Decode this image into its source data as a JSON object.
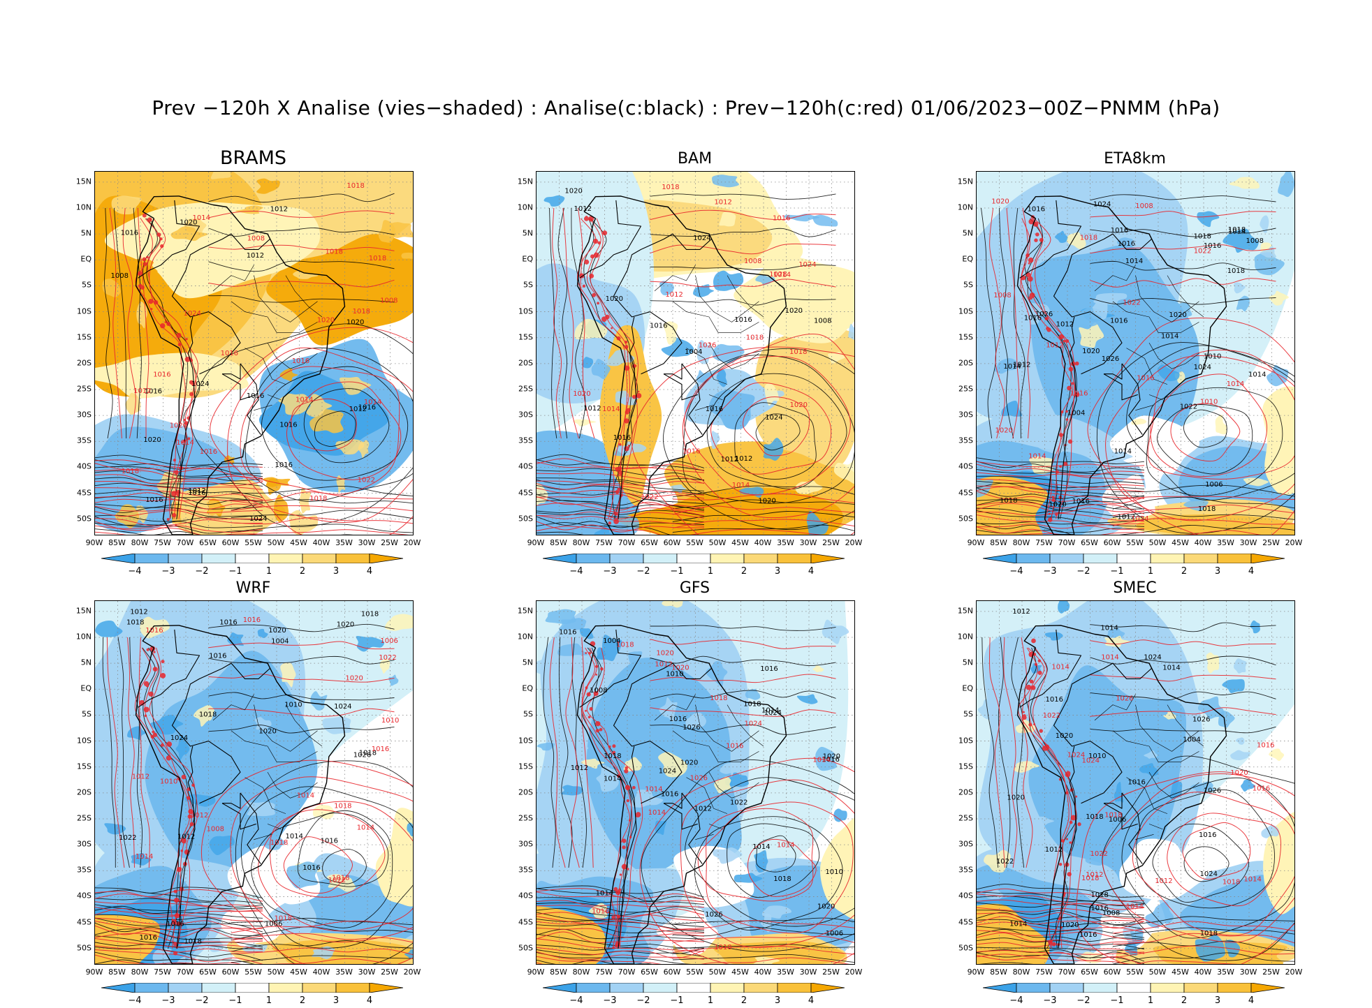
{
  "title": "Prev −120h X Analise (vies−shaded) : Analise(c:black) : Prev−120h(c:red) 01/06/2023−00Z−PNMM (hPa)",
  "lat_labels": [
    "15N",
    "10N",
    "5N",
    "EQ",
    "5S",
    "10S",
    "15S",
    "20S",
    "25S",
    "30S",
    "35S",
    "40S",
    "45S",
    "50S"
  ],
  "lon_labels": [
    "90W",
    "85W",
    "80W",
    "75W",
    "70W",
    "65W",
    "60W",
    "55W",
    "50W",
    "45W",
    "40W",
    "35W",
    "30W",
    "25W",
    "20W"
  ],
  "colorbar": {
    "labels": [
      "−4",
      "−3",
      "−2",
      "−1",
      "1",
      "2",
      "3",
      "4"
    ],
    "colors": [
      "#3ba2e8",
      "#6cb8ee",
      "#a2d2f4",
      "#d2f0f8",
      "#ffffff",
      "#fff4b4",
      "#fbd978",
      "#f9c13a",
      "#f5a700"
    ]
  },
  "colors": {
    "black_contour": "#000000",
    "red_contour": "#e8262c",
    "land_border": "#000000"
  },
  "panels": [
    {
      "name": "BRAMS",
      "bias": "warm",
      "labels_black": [
        "1012",
        "1016",
        "1012",
        "1012",
        "1016",
        "1020",
        "1016",
        "1020",
        "1024",
        "1016",
        "1016",
        "1012",
        "1008",
        "1024",
        "1020",
        "1016",
        "1016",
        "1016"
      ],
      "labels_red": [
        "1018",
        "1016",
        "1016",
        "1012",
        "1014",
        "1014",
        "1014",
        "1016",
        "1018",
        "1018",
        "1020",
        "1020",
        "1018",
        "1018",
        "1022",
        "1018",
        "1016",
        "1008",
        "1008",
        "1024",
        "1014"
      ]
    },
    {
      "name": "BAM",
      "bias": "mixed",
      "labels_black": [
        "1016",
        "1012",
        "1012",
        "1020",
        "1016",
        "1020",
        "1024",
        "1020",
        "1016",
        "1012",
        "1008",
        "1004",
        "1024",
        "1020",
        "1016",
        "1012"
      ],
      "labels_red": [
        "1020",
        "1018",
        "1016",
        "1014",
        "1014",
        "1012",
        "1014",
        "1022",
        "1024",
        "1026",
        "1028",
        "1018",
        "1018",
        "1012",
        "1020",
        "1008",
        "1016"
      ]
    },
    {
      "name": "ETA8km",
      "bias": "cold",
      "labels_black": [
        "1016",
        "1018",
        "1016",
        "1012",
        "1014",
        "1014",
        "1014",
        "1014",
        "1016",
        "1016",
        "1018",
        "1016",
        "1018",
        "1020",
        "1022",
        "1024",
        "1026",
        "1020",
        "1018",
        "1016",
        "1018",
        "1014",
        "1012",
        "1008",
        "1006",
        "1004",
        "1026",
        "1024",
        "1020",
        "1010",
        "1014",
        "1012",
        "1016"
      ],
      "labels_red": [
        "1016",
        "1008",
        "1010",
        "1012",
        "1014",
        "1016",
        "1018",
        "1020",
        "1022",
        "1024",
        "1022",
        "1020",
        "1008",
        "1014"
      ]
    },
    {
      "name": "WRF",
      "bias": "cold",
      "labels_black": [
        "1016",
        "1018",
        "1016",
        "1012",
        "1014",
        "1016",
        "1018",
        "1018",
        "1016",
        "1018",
        "1018",
        "1020",
        "1024",
        "1026",
        "1020",
        "1022",
        "1016",
        "1012",
        "1010",
        "1006",
        "1004",
        "1024",
        "1020",
        "1016"
      ],
      "labels_red": [
        "1018",
        "1016",
        "1014",
        "1010",
        "1014",
        "1012",
        "1016",
        "1018",
        "1020",
        "1018",
        "1022",
        "1018",
        "1016",
        "1014",
        "1012",
        "1008",
        "1006",
        "1010",
        "1022"
      ]
    },
    {
      "name": "GFS",
      "bias": "cold",
      "labels_black": [
        "1016",
        "1018",
        "1016",
        "1012",
        "1010",
        "1014",
        "1014",
        "1014",
        "1016",
        "1018",
        "1020",
        "1022",
        "1024",
        "1026",
        "1020",
        "1018",
        "1016",
        "1014",
        "1012",
        "1010",
        "1008",
        "1006",
        "1004",
        "1026",
        "1024",
        "1020",
        "1016"
      ],
      "labels_red": [
        "1018",
        "1016",
        "1014",
        "1014",
        "1012",
        "1010",
        "1014",
        "1018",
        "1020",
        "1024",
        "1026",
        "1016",
        "1020",
        "1014"
      ]
    },
    {
      "name": "SMEC",
      "bias": "cold",
      "labels_black": [
        "1016",
        "1018",
        "1016",
        "1014",
        "1012",
        "1010",
        "1016",
        "1014",
        "1018",
        "1020",
        "1022",
        "1024",
        "1026",
        "1020",
        "1018",
        "1016",
        "1014",
        "1012",
        "1008",
        "1006",
        "1004",
        "1026",
        "1024",
        "1020",
        "1016"
      ],
      "labels_red": [
        "1018",
        "1016",
        "1014",
        "1014",
        "1012",
        "1014",
        "1016",
        "1018",
        "1020",
        "1022",
        "1024",
        "1026",
        "1024",
        "1022",
        "1018",
        "1014",
        "1012"
      ]
    }
  ]
}
